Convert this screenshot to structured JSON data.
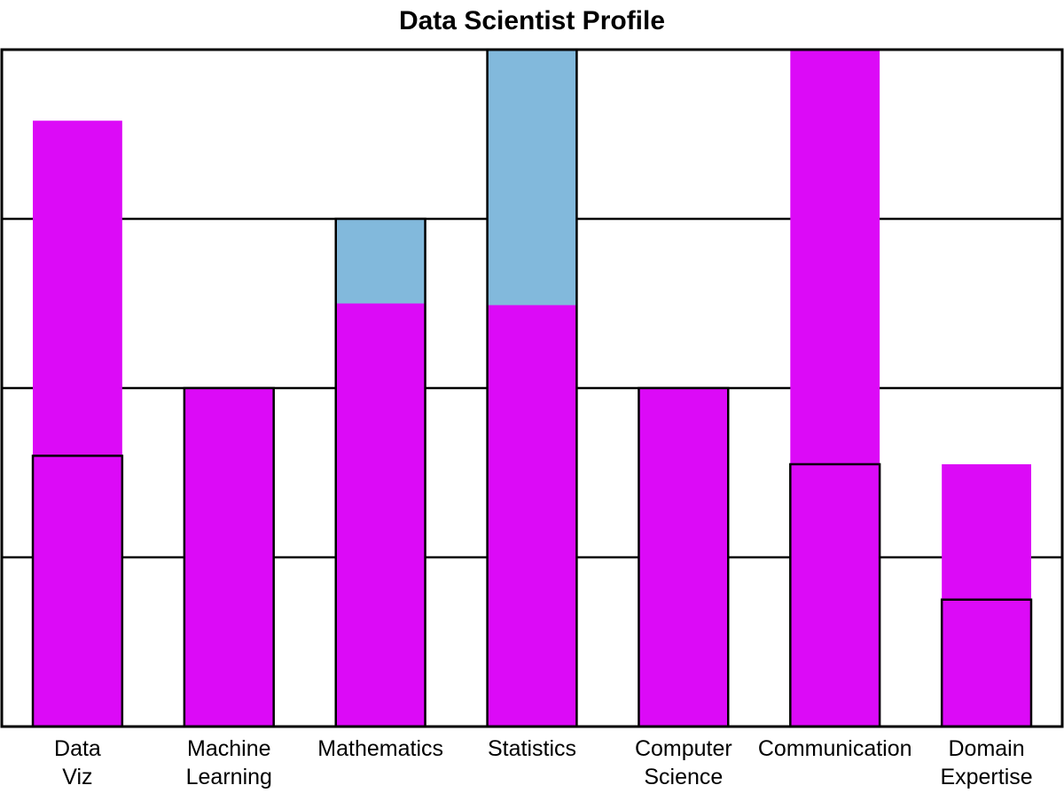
{
  "chart_data": {
    "type": "bar",
    "title": "Data Scientist Profile",
    "xlabel": "",
    "ylabel": "",
    "ylim": [
      0,
      4
    ],
    "grid": true,
    "y_gridlines": [
      1,
      2,
      3
    ],
    "categories": [
      [
        "Data",
        "Viz"
      ],
      [
        "Machine",
        "Learning"
      ],
      [
        "Mathematics"
      ],
      [
        "Statistics"
      ],
      [
        "Computer",
        "Science"
      ],
      [
        "Communication"
      ],
      [
        "Domain",
        "Expertise"
      ]
    ],
    "series": [
      {
        "values": [
          3.58,
          2.0,
          2.5,
          2.49,
          2.0,
          4.0,
          1.55
        ],
        "color": "#DC0AF7"
      },
      {
        "values": [
          0,
          0,
          3.0,
          4.0,
          0,
          0,
          0
        ],
        "color": "#82B9DC",
        "drawn_behind": true
      },
      {
        "values": [
          1.6,
          2.0,
          3.0,
          4.0,
          2.0,
          1.55,
          0.75
        ],
        "outline_only": true,
        "outline_color": "#000000"
      }
    ]
  }
}
